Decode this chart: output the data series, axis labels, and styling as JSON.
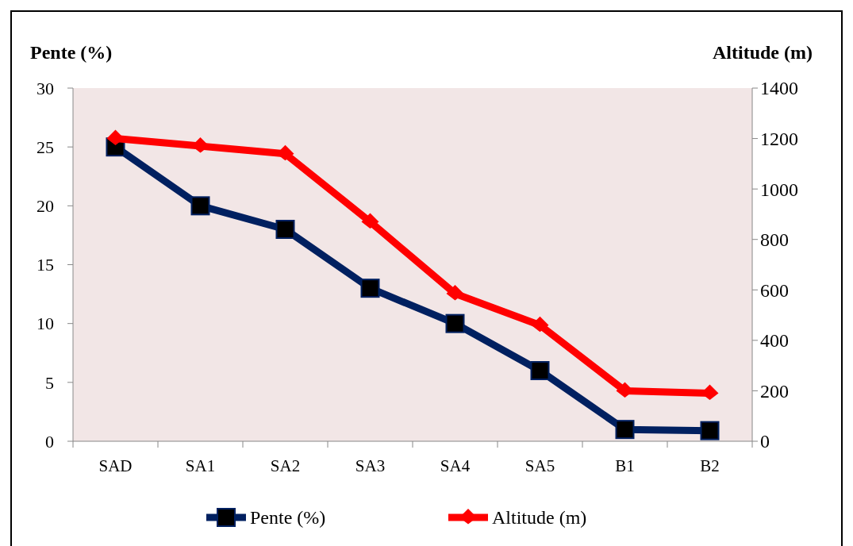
{
  "chart_data": {
    "type": "line",
    "categories": [
      "SAD",
      "SA1",
      "SA2",
      "SA3",
      "SA4",
      "SA5",
      "B1",
      "B2"
    ],
    "ylabel": "Pente (%)",
    "y2label": "Altitude (m)",
    "series": [
      {
        "name": "Pente (%)",
        "color": "#002060",
        "marker": "square",
        "values": [
          25,
          20,
          18,
          13,
          10,
          6,
          1,
          0.9
        ]
      },
      {
        "name": "Altitude (m)",
        "color": "#ff0000",
        "marker": "diamond",
        "axis": "y2",
        "values": [
          1200,
          1170,
          1140,
          870,
          585,
          460,
          200,
          190
        ]
      }
    ],
    "ylim": [
      0,
      30
    ],
    "yticks": [
      0,
      5,
      10,
      15,
      20,
      25,
      30
    ],
    "y2lim": [
      0,
      1400
    ],
    "y2ticks": [
      0,
      200,
      400,
      600,
      800,
      1000,
      1200,
      1400
    ],
    "grid": false,
    "legend": "bottom",
    "line_style": "solid"
  }
}
